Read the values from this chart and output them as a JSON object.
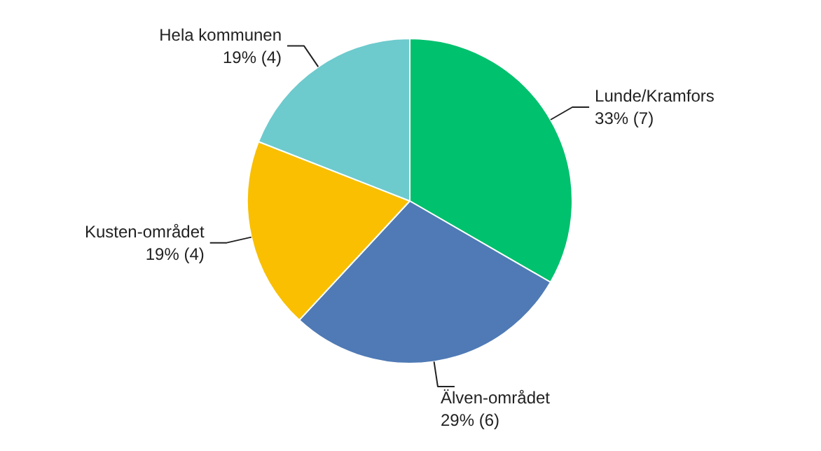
{
  "chart_data": {
    "type": "pie",
    "categories": [
      "Lunde/Kramfors",
      "Älven-området",
      "Kusten-området",
      "Hela kommunen"
    ],
    "values": [
      7,
      6,
      4,
      4
    ],
    "value_labels": [
      "33% (7)",
      "29% (6)",
      "19% (4)",
      "19% (4)"
    ],
    "colors": [
      "#00c16e",
      "#4f7ab5",
      "#f9bf00",
      "#6dcacd"
    ]
  }
}
